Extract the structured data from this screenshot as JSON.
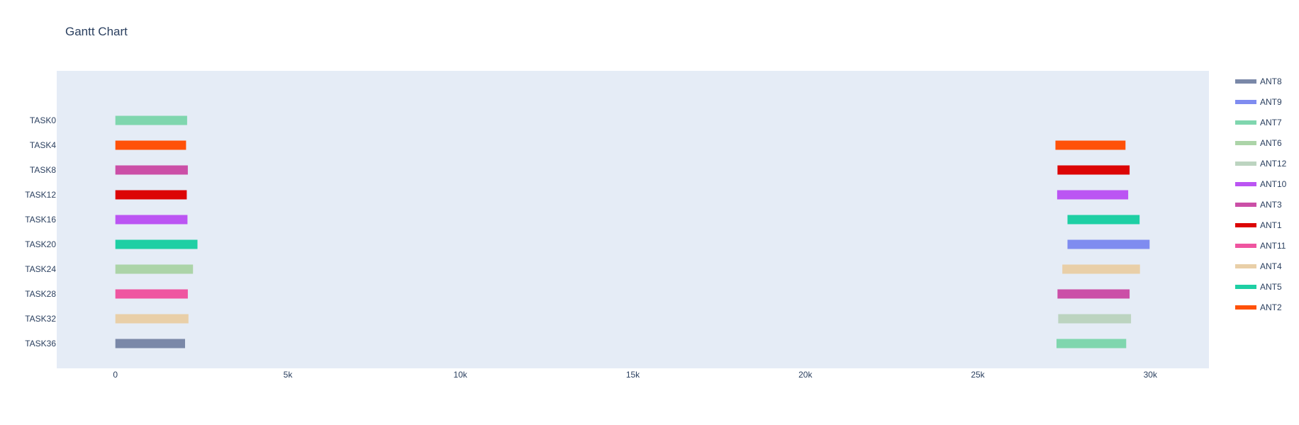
{
  "chart_data": {
    "type": "bar",
    "orientation": "horizontal",
    "title": "Gantt Chart",
    "xlabel": "",
    "ylabel": "",
    "xlim": [
      -1700,
      31700
    ],
    "x_ticks": [
      0,
      5000,
      10000,
      15000,
      20000,
      25000,
      30000
    ],
    "x_tick_labels": [
      "0",
      "5k",
      "10k",
      "15k",
      "20k",
      "25k",
      "30k"
    ],
    "categories": [
      "TASK0",
      "TASK4",
      "TASK8",
      "TASK12",
      "TASK16",
      "TASK20",
      "TASK24",
      "TASK28",
      "TASK32",
      "TASK36"
    ],
    "grid": false,
    "plot_background": "#e5ecf6",
    "legend_position": "right",
    "series": [
      {
        "name": "ANT8",
        "color": "#7a88a8",
        "bars": [
          {
            "task": "TASK36",
            "start": 0,
            "end": 2020
          }
        ]
      },
      {
        "name": "ANT9",
        "color": "#7f8cf0",
        "bars": [
          {
            "task": "TASK20",
            "start": 27600,
            "end": 29980
          }
        ]
      },
      {
        "name": "ANT7",
        "color": "#7fd6ae",
        "bars": [
          {
            "task": "TASK0",
            "start": 0,
            "end": 2080
          },
          {
            "task": "TASK36",
            "start": 27280,
            "end": 29300
          }
        ]
      },
      {
        "name": "ANT6",
        "color": "#acd4a8",
        "bars": [
          {
            "task": "TASK24",
            "start": 0,
            "end": 2250
          }
        ]
      },
      {
        "name": "ANT12",
        "color": "#bcd4c0",
        "bars": [
          {
            "task": "TASK32",
            "start": 27330,
            "end": 29440
          }
        ]
      },
      {
        "name": "ANT10",
        "color": "#bb55f3",
        "bars": [
          {
            "task": "TASK16",
            "start": 0,
            "end": 2090
          },
          {
            "task": "TASK12",
            "start": 27300,
            "end": 29360
          }
        ]
      },
      {
        "name": "ANT3",
        "color": "#cb4fa7",
        "bars": [
          {
            "task": "TASK8",
            "start": 0,
            "end": 2100
          },
          {
            "task": "TASK28",
            "start": 27310,
            "end": 29400
          }
        ]
      },
      {
        "name": "ANT1",
        "color": "#dc0505",
        "bars": [
          {
            "task": "TASK12",
            "start": 0,
            "end": 2070
          },
          {
            "task": "TASK8",
            "start": 27310,
            "end": 29400
          }
        ]
      },
      {
        "name": "ANT11",
        "color": "#ef55a0",
        "bars": [
          {
            "task": "TASK28",
            "start": 0,
            "end": 2100
          }
        ]
      },
      {
        "name": "ANT4",
        "color": "#e9cfa8",
        "bars": [
          {
            "task": "TASK32",
            "start": 0,
            "end": 2120
          },
          {
            "task": "TASK24",
            "start": 27450,
            "end": 29700
          }
        ]
      },
      {
        "name": "ANT5",
        "color": "#1ecfa4",
        "bars": [
          {
            "task": "TASK20",
            "start": 0,
            "end": 2380
          },
          {
            "task": "TASK16",
            "start": 27600,
            "end": 29690
          }
        ]
      },
      {
        "name": "ANT2",
        "color": "#ff5108",
        "bars": [
          {
            "task": "TASK4",
            "start": 0,
            "end": 2050
          },
          {
            "task": "TASK4",
            "start": 27250,
            "end": 29280
          }
        ]
      }
    ]
  }
}
